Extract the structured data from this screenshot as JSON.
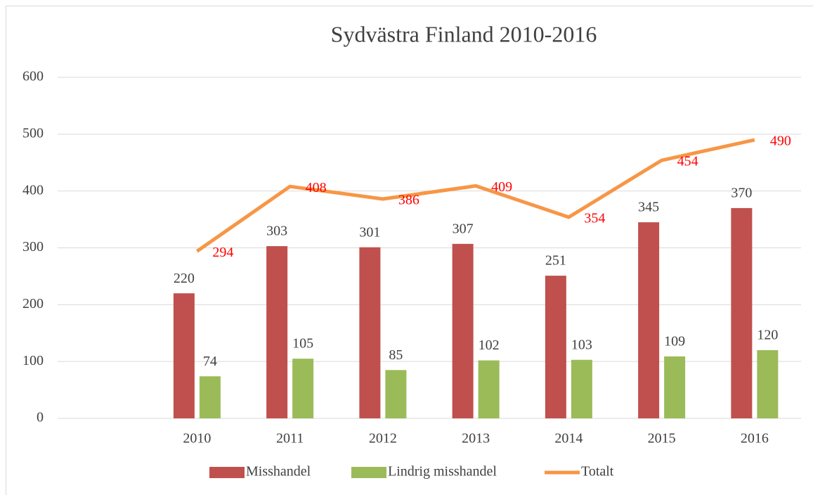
{
  "chart_data": {
    "type": "bar",
    "title": "Sydvästra Finland 2010-2016",
    "categories": [
      null,
      "2010",
      "2011",
      "2012",
      "2013",
      "2014",
      "2015",
      "2016"
    ],
    "series": [
      {
        "name": "Misshandel",
        "color": "#c0504d",
        "values": [
          null,
          220,
          303,
          301,
          307,
          251,
          345,
          370
        ]
      },
      {
        "name": "Lindrig misshandel",
        "color": "#9bbb59",
        "values": [
          null,
          74,
          105,
          85,
          102,
          103,
          109,
          120
        ]
      },
      {
        "name": "Totalt",
        "type": "line",
        "color": "#f79646",
        "label_color": "#ff0000",
        "values": [
          null,
          294,
          408,
          386,
          409,
          354,
          454,
          490
        ]
      }
    ],
    "ylim": [
      0,
      600
    ],
    "yticks": [
      0,
      100,
      200,
      300,
      400,
      500,
      600
    ],
    "grid": true,
    "legend": "bottom"
  }
}
